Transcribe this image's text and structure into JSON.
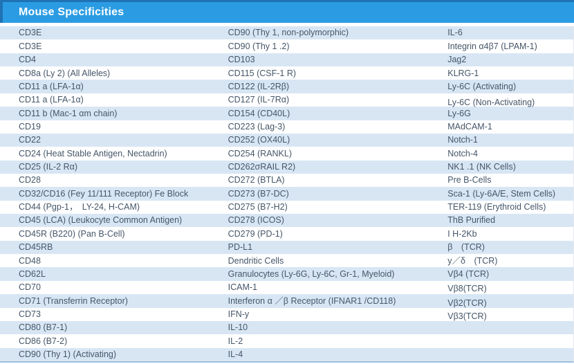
{
  "header": {
    "title": "Mouse Specificities"
  },
  "colors": {
    "header_bg": "#2B9CE3",
    "header_border": "#1F72B4",
    "row_alt_bg": "#D8E6F4",
    "row_bg": "#FFFFFF",
    "text": "#455668",
    "header_text": "#FFFFFF",
    "bottom_border": "#9FBFDC"
  },
  "table": {
    "rows": [
      {
        "c1": "CD3E",
        "c2": "CD90 (Thy 1, non-polymorphic)",
        "c3": "IL-6"
      },
      {
        "c1": "CD3E",
        "c2": "CD90 (Thy 1 .2)",
        "c3": "Integrin α4β7 (LPAM-1)"
      },
      {
        "c1": "CD4",
        "c2": "CD103",
        "c3": "Jag2"
      },
      {
        "c1": "CD8a (Ly 2) (All Alleles)",
        "c2": "CD115 (CSF-1 R)",
        "c3": "KLRG-1"
      },
      {
        "c1": "CD11 a (LFA-1α)",
        "c2": "CD122 (IL-2Rβ)",
        "c3": "Ly-6C (Activating)"
      },
      {
        "c1": "CD11 a (LFA-1α)",
        "c2": "CD127 (IL-7Rα)",
        "c3": "Ly-6C (Non-Activating)"
      },
      {
        "c1": "CD11 b (Mac-1 αm chain)",
        "c2": "CD154 (CD40L)",
        "c3": "Ly-6G"
      },
      {
        "c1": "CD19",
        "c2": "CD223 (Lag-3)",
        "c3": "MAdCAM-1"
      },
      {
        "c1": "CD22",
        "c2": "CD252 (OX40L)",
        "c3": "Notch-1"
      },
      {
        "c1": "CD24 (Heat Stable Antigen, Nectadrin)",
        "c2": "CD254 (RANKL)",
        "c3": "Notch-4"
      },
      {
        "c1": "CD25 (IL-2 Rα)",
        "c2": "CD262σRAIL R2)",
        "c3": "NK1 .1 (NK Cells)"
      },
      {
        "c1": "CD28",
        "c2": "CD272 (BTLA)",
        "c3": "Pre B-Cells"
      },
      {
        "c1": "CD32/CD16 (Fey 11/111 Receptor) Fe Block",
        "c2": "CD273 (B7-DC)",
        "c3": "Sca-1 (Ly-6A/E, Stem Cells)"
      },
      {
        "c1": "CD44 (Pgp-1， LY-24, H-CAM)",
        "c2": "CD275 (B7-H2)",
        "c3": "TER-119 (Erythroid Cells)"
      },
      {
        "c1": "CD45 (LCA) (Leukocyte Common Antigen)",
        "c2": "CD278 (ICOS)",
        "c3": "ThB Purified"
      },
      {
        "c1": "CD45R (B220) (Pan B-Cell)",
        "c2": "CD279 (PD-1)",
        "c3": "I H-2Kb"
      },
      {
        "c1": "CD45RB",
        "c2": "PD-L1",
        "c3": "β　(TCR)"
      },
      {
        "c1": "CD48",
        "c2": "Dendritic Cells",
        "c3": "y／δ　(TCR)"
      },
      {
        "c1": "CD62L",
        "c2": "Granulocytes (Ly-6G, Ly-6C, Gr-1, Myeloid)",
        "c3": "Vβ4 (TCR)"
      },
      {
        "c1": "CD70",
        "c2": "ICAM-1",
        "c3": "Vβ8(TCR)"
      },
      {
        "c1": "CD71 (Transferrin Receptor)",
        "c2": "Interferon α ／β Receptor (IFNAR1 /CD118)",
        "c3": "Vβ2(TCR)"
      },
      {
        "c1": "CD73",
        "c2": "IFN-y",
        "c3": "Vβ3(TCR)"
      },
      {
        "c1": "CD80 (B7-1)",
        "c2": "IL-10",
        "c3": ""
      },
      {
        "c1": "CD86 (B7-2)",
        "c2": "IL-2",
        "c3": ""
      },
      {
        "c1": "CD90 (Thy 1) (Activating)",
        "c2": "IL-4",
        "c3": ""
      }
    ]
  }
}
